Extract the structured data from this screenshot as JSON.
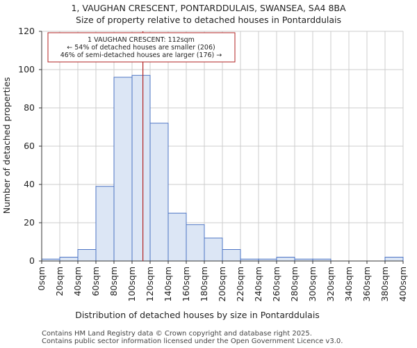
{
  "chart_data": {
    "type": "bar",
    "title_line1": "1, VAUGHAN CRESCENT, PONTARDDULAIS, SWANSEA, SA4 8BA",
    "title_line2": "Size of property relative to detached houses in Pontarddulais",
    "xlabel": "Distribution of detached houses by size in Pontarddulais",
    "ylabel": "Number of detached properties",
    "bin_edges": [
      0,
      20,
      40,
      60,
      80,
      100,
      120,
      140,
      160,
      180,
      200,
      220,
      240,
      260,
      280,
      300,
      320,
      340,
      360,
      380,
      400
    ],
    "x_tick_labels": [
      "0sqm",
      "20sqm",
      "40sqm",
      "60sqm",
      "80sqm",
      "100sqm",
      "120sqm",
      "140sqm",
      "160sqm",
      "180sqm",
      "200sqm",
      "220sqm",
      "240sqm",
      "260sqm",
      "280sqm",
      "300sqm",
      "320sqm",
      "340sqm",
      "360sqm",
      "380sqm",
      "400sqm"
    ],
    "values": [
      1,
      2,
      6,
      39,
      96,
      97,
      72,
      25,
      19,
      12,
      6,
      1,
      1,
      2,
      1,
      1,
      0,
      0,
      0,
      2
    ],
    "ylim": [
      0,
      120
    ],
    "y_ticks": [
      0,
      20,
      40,
      60,
      80,
      100,
      120
    ],
    "grid": true,
    "subject_size": 112,
    "annotation": {
      "line1": "1 VAUGHAN CRESCENT: 112sqm",
      "line2": "← 54% of detached houses are smaller (206)",
      "line3": "46% of semi-detached houses are larger (176) →"
    },
    "colors": {
      "bar_fill": "#dce6f5",
      "bar_edge": "#4d74c4",
      "marker": "#b22222"
    }
  },
  "footer": {
    "line1": "Contains HM Land Registry data © Crown copyright and database right 2025.",
    "line2": "Contains public sector information licensed under the Open Government Licence v3.0."
  }
}
